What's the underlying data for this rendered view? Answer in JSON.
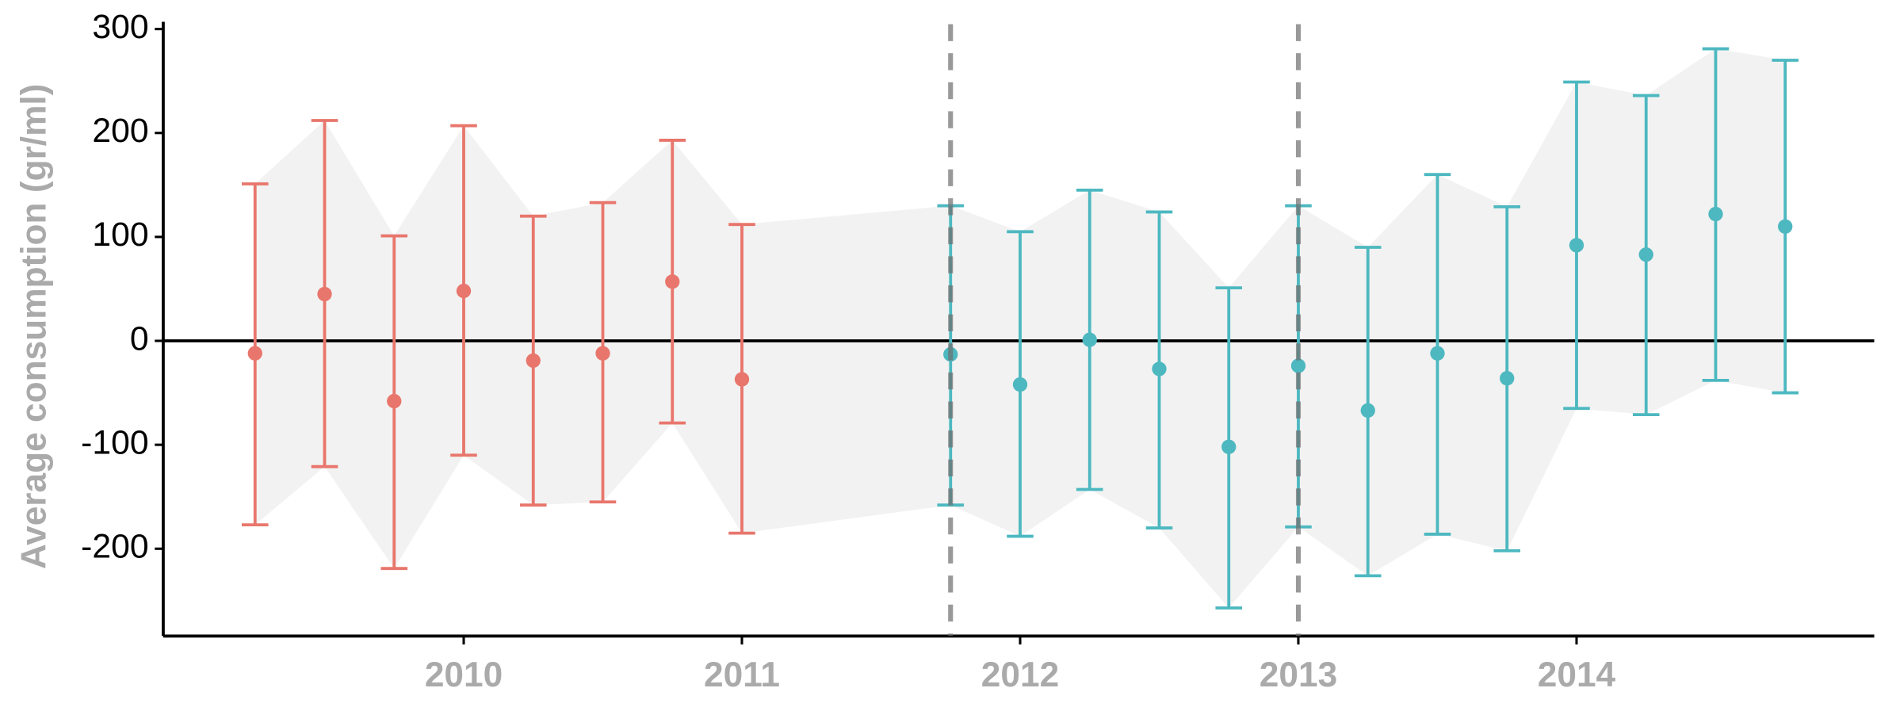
{
  "chart_data": {
    "type": "errorbar",
    "ylabel": "Average consumption (gr/ml)",
    "xlim": [
      2008.92,
      2015.07
    ],
    "xticks": [
      2010,
      2011,
      2012,
      2013,
      2014
    ],
    "ylim": [
      -284,
      307
    ],
    "yticks": [
      -200,
      -100,
      0,
      100,
      200,
      300
    ],
    "hline": 0,
    "vlines": [
      2011.75,
      2013
    ],
    "ribbon_color": "#f2f2f2",
    "series": [
      {
        "color": "#e8766c",
        "x": [
          2009.25,
          2009.5,
          2009.75,
          2010,
          2010.25,
          2010.5,
          2010.75,
          2011
        ],
        "values": [
          -12,
          45,
          -58,
          48,
          -19,
          -12,
          57,
          -37
        ],
        "upper": [
          151,
          212,
          101,
          207,
          120,
          133,
          193,
          112
        ],
        "lower": [
          -177,
          -121,
          -219,
          -110,
          -158,
          -155,
          -79,
          -185
        ]
      },
      {
        "color": "#4db8c0",
        "x": [
          2011.75,
          2012,
          2012.25,
          2012.5,
          2012.75,
          2013,
          2013.25,
          2013.5,
          2013.75,
          2014,
          2014.25,
          2014.5,
          2014.75
        ],
        "values": [
          -13,
          -42,
          1,
          -27,
          -102,
          -24,
          -67,
          -12,
          -36,
          92,
          83,
          122,
          110
        ],
        "upper": [
          130,
          105,
          145,
          124,
          51,
          130,
          90,
          160,
          129,
          249,
          236,
          281,
          270
        ],
        "lower": [
          -158,
          -188,
          -143,
          -180,
          -257,
          -179,
          -226,
          -186,
          -202,
          -65,
          -71,
          -38,
          -50
        ]
      }
    ]
  }
}
